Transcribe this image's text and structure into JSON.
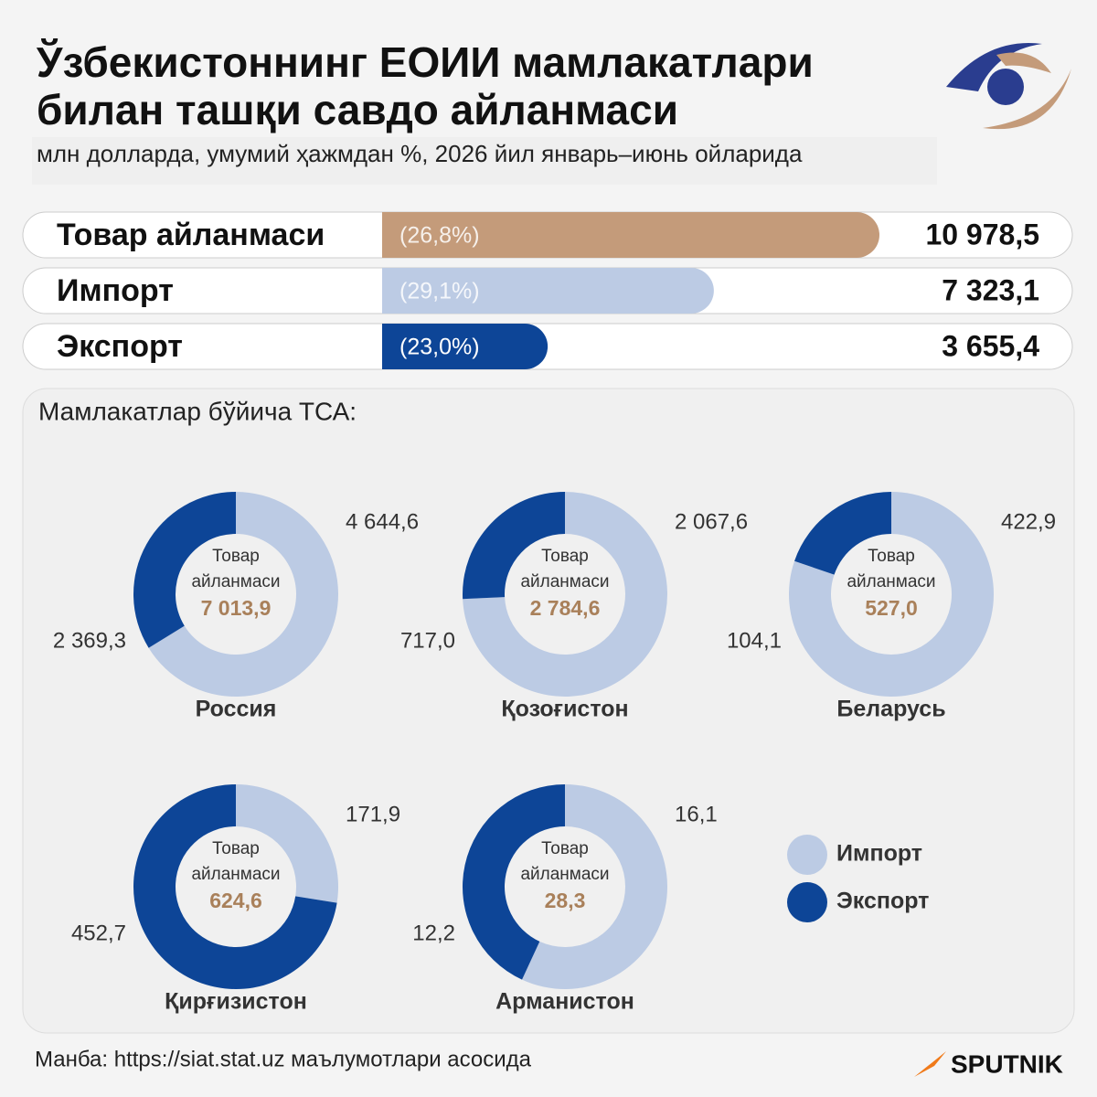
{
  "header": {
    "title_lines": [
      "Ўзбекистоннинг ЕОИИ мамлакатлари",
      "билан ташқи савдо айланмаси"
    ],
    "subtitle": "млн долларда, умумий ҳажмдан %, 2026 йил январь–июнь ойларида"
  },
  "chart_data": [
    {
      "type": "bar",
      "categories": [
        "Товар айланмаси",
        "Импорт",
        "Экспорт"
      ],
      "values": [
        10978.5,
        7323.1,
        3655.4
      ],
      "value_labels": [
        "10 978,5",
        "7 323,1",
        "3 655,4"
      ],
      "shares": [
        26.8,
        29.1,
        23.0
      ],
      "share_labels": [
        "(26,8%)",
        "(29,1%)",
        "(23,0%)"
      ],
      "colors": [
        "#c49b7a",
        "#bccbe4",
        "#0d4597"
      ]
    },
    {
      "type": "donut",
      "title": "Мамлакатлар бўйича ТСА:",
      "center_label": "Товар айланмаси",
      "legend": [
        "Импорт",
        "Экспорт"
      ],
      "colors": [
        "#bccbe4",
        "#0d4597"
      ],
      "countries": [
        {
          "name": "Россия",
          "total": 7013.9,
          "total_label": "7 013,9",
          "values": [
            4644.6,
            2369.3
          ],
          "value_labels": [
            "4 644,6",
            "2 369,3"
          ]
        },
        {
          "name": "Қозоғистон",
          "total": 2784.6,
          "total_label": "2 784,6",
          "values": [
            2067.6,
            717.0
          ],
          "value_labels": [
            "2 067,6",
            "717,0"
          ]
        },
        {
          "name": "Беларусь",
          "total": 527.0,
          "total_label": "527,0",
          "values": [
            422.9,
            104.1
          ],
          "value_labels": [
            "422,9",
            "104,1"
          ]
        },
        {
          "name": "Қирғизистон",
          "total": 624.6,
          "total_label": "624,6",
          "values": [
            171.9,
            452.7
          ],
          "value_labels": [
            "171,9",
            "452,7"
          ]
        },
        {
          "name": "Арманистон",
          "total": 28.3,
          "total_label": "28,3",
          "values": [
            16.1,
            12.2
          ],
          "value_labels": [
            "16,1",
            "12,2"
          ]
        }
      ]
    }
  ],
  "footer": {
    "source": "Манба: https://siat.stat.uz маълумотлари асосида",
    "brand": "SPUTNIK"
  }
}
